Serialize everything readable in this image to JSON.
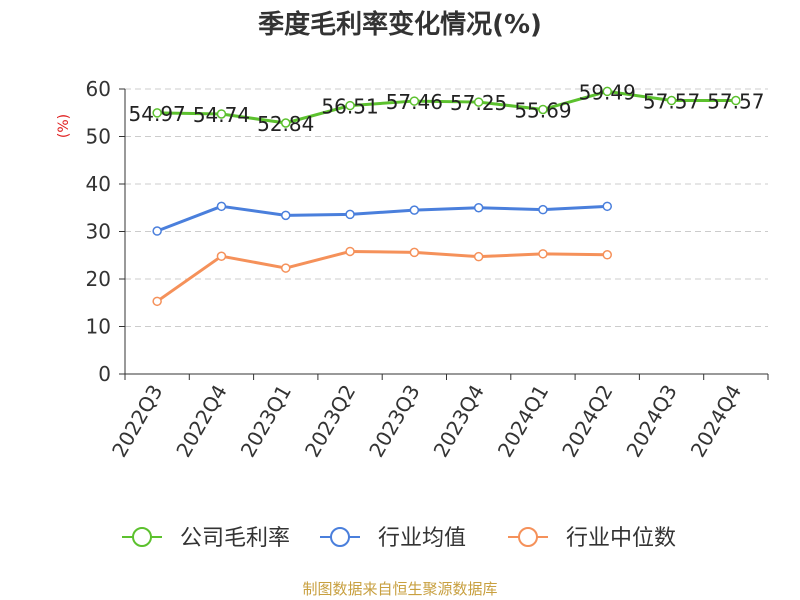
{
  "chart_data": {
    "type": "line",
    "title": "季度毛利率变化情况(%)",
    "ylabel": "(%)",
    "xlabel": "",
    "ylim": [
      0,
      60
    ],
    "yticks": [
      0,
      10,
      20,
      30,
      40,
      50,
      60
    ],
    "grid": true,
    "legend_position": "bottom",
    "categories": [
      "2022Q3",
      "2022Q4",
      "2023Q1",
      "2023Q2",
      "2023Q3",
      "2023Q4",
      "2024Q1",
      "2024Q2",
      "2024Q3",
      "2024Q4"
    ],
    "series": [
      {
        "name": "公司毛利率",
        "color": "#5cc12e",
        "values": [
          54.97,
          54.74,
          52.84,
          56.51,
          57.46,
          57.25,
          55.69,
          59.49,
          57.57,
          57.57
        ],
        "labels": [
          "54.97",
          "54.74",
          "52.84",
          "56.51",
          "57.46",
          "57.25",
          "55.69",
          "59.49",
          "57.57",
          "57.57"
        ]
      },
      {
        "name": "行业均值",
        "color": "#4a7fdc",
        "values": [
          30.1,
          35.3,
          33.4,
          33.6,
          34.5,
          35.0,
          34.6,
          35.3,
          null,
          null
        ]
      },
      {
        "name": "行业中位数",
        "color": "#f5915a",
        "values": [
          15.3,
          24.8,
          22.3,
          25.8,
          25.6,
          24.7,
          25.3,
          25.1,
          null,
          null
        ]
      }
    ]
  },
  "source": "制图数据来自恒生聚源数据库"
}
